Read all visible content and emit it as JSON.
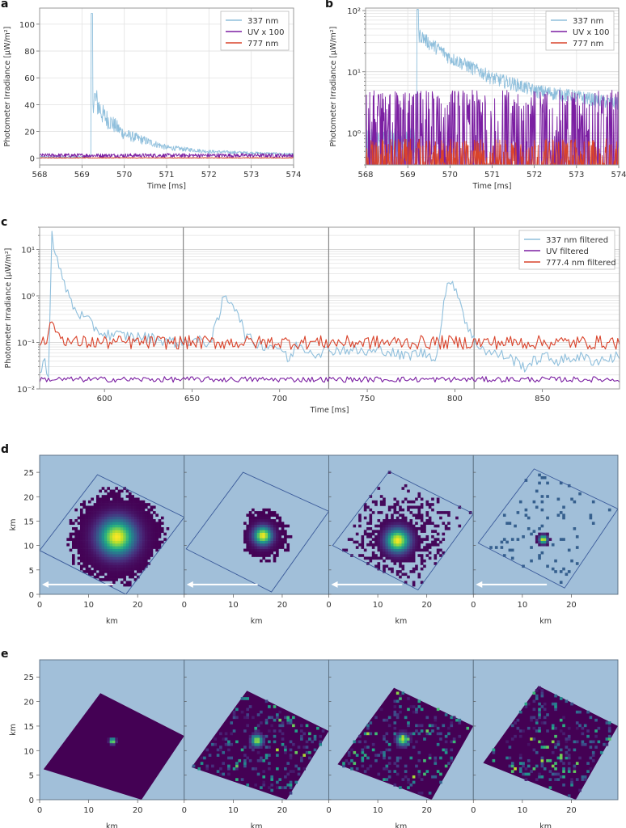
{
  "chart_data": [
    {
      "id": "a",
      "panel_label": "a",
      "type": "line",
      "yscale": "linear",
      "xlabel": "Time [ms]",
      "ylabel": "Photometer Irradiance [μW/m²]",
      "xlim": [
        568,
        574
      ],
      "ylim": [
        -5,
        112
      ],
      "xticks": [
        568,
        569,
        570,
        571,
        572,
        573,
        574
      ],
      "yticks": [
        0,
        20,
        40,
        60,
        80,
        100
      ],
      "ytick_labels": [
        "0",
        "20",
        "40",
        "60",
        "80",
        "100"
      ],
      "grid": true,
      "legend_position": "top-right",
      "series": [
        {
          "name": "337 nm",
          "color": "#8fbfdc",
          "peak": {
            "x": 569.22,
            "y": 108
          },
          "baseline": 0.5,
          "decay": "exponential to ~3 by 574 ms",
          "values_approx": {
            "569.3": 45,
            "569.5": 32,
            "570.0": 18,
            "570.5": 13,
            "571.0": 8,
            "572.0": 5,
            "573.0": 4,
            "574.0": 3
          }
        },
        {
          "name": "UV x 100",
          "color": "#7b1fa2",
          "mean": 1.5,
          "noise": 3
        },
        {
          "name": "777 nm",
          "color": "#d9432b",
          "mean": 0.2,
          "noise": 0.5
        }
      ]
    },
    {
      "id": "b",
      "panel_label": "b",
      "type": "line",
      "yscale": "log",
      "xlabel": "Time [ms]",
      "ylabel": "Photometer Irradiance [μW/m²]",
      "xlim": [
        568,
        574
      ],
      "ylim": [
        0.3,
        110
      ],
      "xticks": [
        568,
        569,
        570,
        571,
        572,
        573,
        574
      ],
      "yticks": [
        1,
        10,
        100
      ],
      "ytick_labels": [
        "10⁰",
        "10¹",
        "10²"
      ],
      "grid": true,
      "legend_position": "top-right",
      "series": [
        {
          "name": "337 nm",
          "color": "#8fbfdc",
          "peak": {
            "x": 569.22,
            "y": 105
          },
          "values_approx": {
            "569.3": 40,
            "569.5": 30,
            "570.0": 17,
            "570.5": 12,
            "571.0": 8,
            "572.0": 5,
            "573.0": 4,
            "574.0": 3
          }
        },
        {
          "name": "UV x 100",
          "color": "#7b1fa2",
          "range": [
            0.3,
            5
          ]
        },
        {
          "name": "777 nm",
          "color": "#d9432b",
          "range": [
            0.3,
            0.8
          ]
        }
      ]
    },
    {
      "id": "c",
      "panel_label": "c",
      "type": "line",
      "yscale": "log",
      "xlabel": "Time [ms]",
      "ylabel": "Photometer Irradiance [μW/m²]",
      "xlim": [
        563,
        894
      ],
      "ylim": [
        0.01,
        30
      ],
      "xticks": [
        600,
        650,
        700,
        750,
        800,
        850
      ],
      "yticks": [
        0.01,
        0.1,
        1,
        10
      ],
      "ytick_labels": [
        "10⁻²",
        "10⁻¹",
        "10⁰",
        "10¹"
      ],
      "vlines": [
        645,
        728,
        811
      ],
      "grid": true,
      "legend_position": "top-right",
      "series": [
        {
          "name": "337 nm filtered",
          "color": "#8fbfdc",
          "x": [
            563,
            566,
            568,
            570,
            572,
            575,
            578,
            582,
            586,
            590,
            595,
            600,
            610,
            620,
            630,
            640,
            650,
            660,
            665,
            668,
            672,
            676,
            680,
            685,
            690,
            700,
            705,
            710,
            720,
            730,
            740,
            750,
            760,
            770,
            780,
            790,
            793,
            796,
            798,
            800,
            803,
            806,
            810,
            815,
            820,
            830,
            840,
            850,
            860,
            870,
            880,
            894
          ],
          "y": [
            0.02,
            0.04,
            0.02,
            22,
            8,
            3,
            1.5,
            0.6,
            0.4,
            0.3,
            0.2,
            0.15,
            0.14,
            0.13,
            0.12,
            0.1,
            0.11,
            0.1,
            0.3,
            0.95,
            0.8,
            0.5,
            0.15,
            0.1,
            0.09,
            0.08,
            0.04,
            0.09,
            0.06,
            0.07,
            0.07,
            0.06,
            0.07,
            0.05,
            0.06,
            0.05,
            0.5,
            1.6,
            2.4,
            1.6,
            0.8,
            0.3,
            0.12,
            0.08,
            0.06,
            0.05,
            0.03,
            0.05,
            0.04,
            0.05,
            0.04,
            0.05
          ]
        },
        {
          "name": "UV filtered",
          "color": "#7b1fa2",
          "mean": 0.016,
          "range": [
            0.013,
            0.019
          ]
        },
        {
          "name": "777.4 nm filtered",
          "color": "#d9432b",
          "mean": 0.1,
          "peak": {
            "x": 570,
            "y": 0.28
          },
          "range": [
            0.06,
            0.28
          ]
        }
      ]
    },
    {
      "id": "d",
      "panel_label": "d",
      "type": "heatmap",
      "xlabel": "km",
      "ylabel": "km",
      "xlim": [
        0,
        29.5
      ],
      "ylim": [
        0,
        28.5
      ],
      "xticks": [
        0,
        10,
        20
      ],
      "yticks": [
        0,
        5,
        10,
        15,
        20,
        25
      ],
      "background": "#a1bfd9",
      "colormap": "viridis",
      "arrow": {
        "from_km": [
          15,
          2
        ],
        "to_km": [
          0.5,
          2
        ],
        "color": "#ffffff"
      },
      "subplots": [
        {
          "footprint": [
            [
              0,
              9
            ],
            [
              11.8,
              24.5
            ],
            [
              29.5,
              15.8
            ],
            [
              17.6,
              0
            ]
          ],
          "blob_center": [
            15.5,
            11.5
          ],
          "blob_extent_km": 9,
          "density": "dense"
        },
        {
          "footprint": [
            [
              0.4,
              9.3
            ],
            [
              12,
              25
            ],
            [
              29.5,
              17
            ],
            [
              17.8,
              0.5
            ]
          ],
          "blob_center": [
            15.8,
            11.8
          ],
          "blob_extent_km": 5,
          "density": "medium"
        },
        {
          "footprint": [
            [
              0.8,
              10
            ],
            [
              12.3,
              25.2
            ],
            [
              29.5,
              16.5
            ],
            [
              18.2,
              0.9
            ]
          ],
          "blob_center": [
            13.8,
            10.8
          ],
          "blob_extent_km": 6,
          "density": "sparse-halo"
        },
        {
          "footprint": [
            [
              1,
              10.5
            ],
            [
              12.4,
              25.7
            ],
            [
              29.5,
              17.5
            ],
            [
              18.6,
              1.3
            ]
          ],
          "blob_center": [
            14,
            11
          ],
          "blob_extent_km": 1.5,
          "density": "scattered"
        }
      ]
    },
    {
      "id": "e",
      "panel_label": "e",
      "type": "heatmap",
      "xlabel": "km",
      "ylabel": "km",
      "xlim": [
        0,
        29.5
      ],
      "ylim": [
        0,
        28.5
      ],
      "xticks": [
        0,
        10,
        20
      ],
      "yticks": [
        0,
        5,
        10,
        15,
        20,
        25
      ],
      "background": "#a1bfd9",
      "colormap": "viridis",
      "subplots": [
        {
          "footprint": [
            [
              0.8,
              6.2
            ],
            [
              12.4,
              21.7
            ],
            [
              29.5,
              13
            ],
            [
              20.8,
              0
            ]
          ],
          "blob_center": [
            14.6,
            11.7
          ],
          "noise": "low"
        },
        {
          "footprint": [
            [
              1.5,
              6.6
            ],
            [
              12.8,
              22.2
            ],
            [
              29.5,
              14
            ],
            [
              20.9,
              0
            ]
          ],
          "blob_center": [
            14.6,
            11.8
          ],
          "noise": "high"
        },
        {
          "footprint": [
            [
              1.8,
              7.2
            ],
            [
              13.3,
              22.8
            ],
            [
              29.5,
              15
            ],
            [
              21,
              0
            ]
          ],
          "blob_center": [
            14.8,
            12
          ],
          "noise": "high"
        },
        {
          "footprint": [
            [
              2,
              7.5
            ],
            [
              13.3,
              23.2
            ],
            [
              29.5,
              15
            ],
            [
              20.9,
              0
            ]
          ],
          "blob_center": null,
          "noise": "high"
        }
      ]
    }
  ]
}
